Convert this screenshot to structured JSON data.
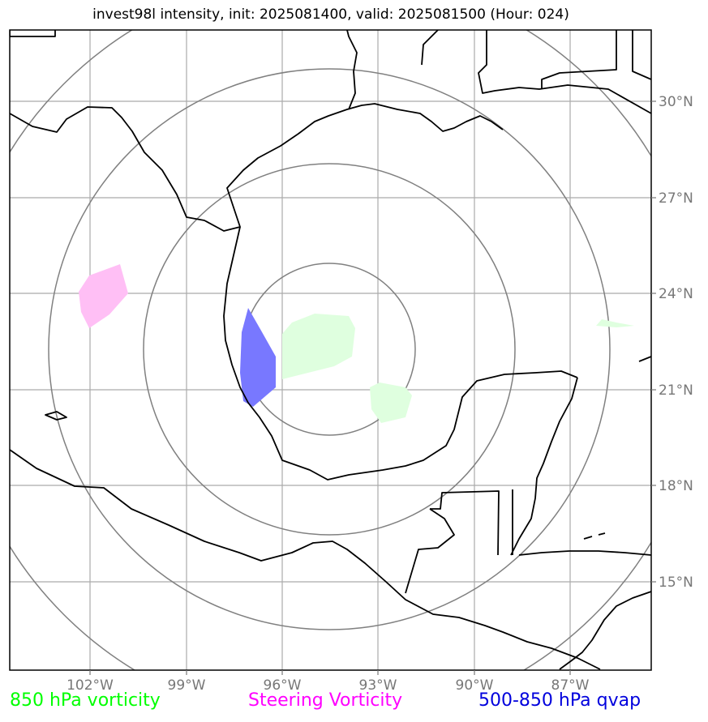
{
  "title": "invest98l intensity, init: 2025081400, valid: 2025081500 (Hour: 024)",
  "longitude_labels": [
    "102°W",
    "99°W",
    "96°W",
    "93°W",
    "90°W",
    "87°W"
  ],
  "latitude_labels": [
    "30°N",
    "27°N",
    "24°N",
    "21°N",
    "18°N",
    "15°N"
  ],
  "legend": {
    "vorticity_850": "850 hPa vorticity",
    "steering_vorticity": "Steering Vorticity",
    "qvap": "500-850 hPa qvap"
  },
  "colors": {
    "vorticity_850": "#00ff00",
    "steering_vorticity": "#ff00ff",
    "qvap": "#0000dd",
    "vorticity_850_fill": "#dfffdf",
    "steering_fill": "#ffbff5",
    "qvap_fill": "#7878ff",
    "gridlines": "#aaaaaa",
    "range_rings": "#808080",
    "coastline": "#000000"
  }
}
